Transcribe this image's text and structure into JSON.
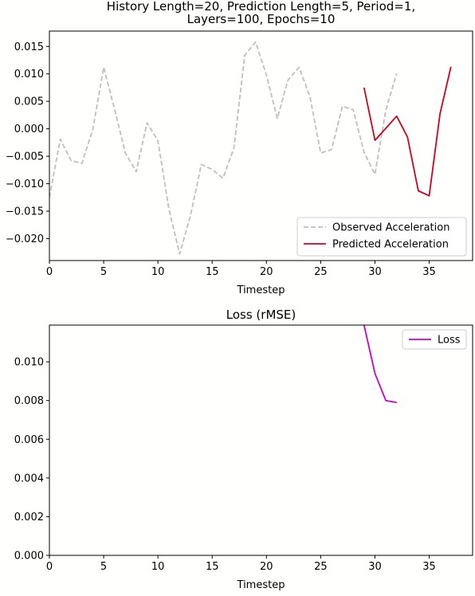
{
  "chart_data": [
    {
      "type": "line",
      "title_lines": [
        "History Length=20, Prediction Length=5, Period=1,",
        "Layers=100, Epochs=10"
      ],
      "xlabel": "Timestep",
      "ylabel": "",
      "xlim": [
        0,
        39
      ],
      "ylim": [
        -0.024,
        0.0178
      ],
      "xticks": [
        0,
        5,
        10,
        15,
        20,
        25,
        30,
        35
      ],
      "xtick_labels": [
        "0",
        "5",
        "10",
        "15",
        "20",
        "25",
        "30",
        "35"
      ],
      "yticks": [
        0.015,
        0.01,
        0.005,
        0.0,
        -0.005,
        -0.01,
        -0.015,
        -0.02
      ],
      "ytick_labels": [
        "0.015",
        "0.010",
        "0.005",
        "0.000",
        "−0.005",
        "−0.010",
        "−0.015",
        "−0.020"
      ],
      "grid": false,
      "legend": "lower-right",
      "series": [
        {
          "name": "Observed Acceleration",
          "color": "#bfbfbf",
          "style": "dashed",
          "x": [
            0,
            1,
            2,
            3,
            4,
            5,
            6,
            7,
            8,
            9,
            10,
            11,
            12,
            13,
            14,
            15,
            16,
            17,
            18,
            19,
            20,
            21,
            22,
            23,
            24,
            25,
            26,
            27,
            28,
            29,
            30,
            31,
            32
          ],
          "y": [
            -0.0125,
            -0.0019,
            -0.0058,
            -0.0063,
            -0.0001,
            0.0112,
            0.0036,
            -0.0044,
            -0.0078,
            0.0011,
            -0.0022,
            -0.0145,
            -0.0228,
            -0.0158,
            -0.0065,
            -0.0074,
            -0.009,
            -0.0035,
            0.0134,
            0.0158,
            0.0098,
            0.0019,
            0.0089,
            0.0112,
            0.0059,
            -0.0044,
            -0.0038,
            0.0041,
            0.0035,
            -0.0043,
            -0.0083,
            0.0034,
            0.0101
          ]
        },
        {
          "name": "Predicted Acceleration",
          "color": "#d00020",
          "style": "solid",
          "x": [
            29,
            30,
            31,
            32,
            33,
            34,
            35,
            36,
            37
          ],
          "y": [
            0.0075,
            -0.0021,
            0.0001,
            0.0023,
            -0.0015,
            -0.0113,
            -0.0122,
            0.0028,
            0.0113
          ]
        }
      ]
    },
    {
      "type": "line",
      "title_lines": [
        "Loss (rMSE)"
      ],
      "xlabel": "Timestep",
      "ylabel": "",
      "xlim": [
        0,
        39
      ],
      "ylim": [
        0,
        0.0119
      ],
      "xticks": [
        0,
        5,
        10,
        15,
        20,
        25,
        30,
        35
      ],
      "xtick_labels": [
        "0",
        "5",
        "10",
        "15",
        "20",
        "25",
        "30",
        "35"
      ],
      "yticks": [
        0.0,
        0.002,
        0.004,
        0.006,
        0.008,
        0.01
      ],
      "ytick_labels": [
        "0.000",
        "0.002",
        "0.004",
        "0.006",
        "0.008",
        "0.010"
      ],
      "grid": false,
      "legend": "top-right",
      "series": [
        {
          "name": "Loss",
          "color": "#cc00cc",
          "style": "solid",
          "x": [
            29,
            30,
            31,
            32
          ],
          "y": [
            0.0119,
            0.0094,
            0.008,
            0.0079
          ]
        }
      ]
    }
  ]
}
